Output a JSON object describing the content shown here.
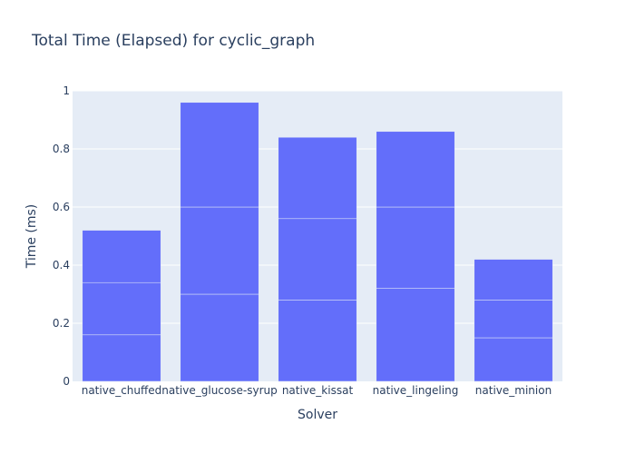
{
  "chart_data": {
    "type": "bar",
    "barmode": "stack",
    "title": "Total Time (Elapsed) for cyclic_graph",
    "xlabel": "Solver",
    "ylabel": "Time (ms)",
    "ylim": [
      0,
      1
    ],
    "yticks": [
      0,
      0.2,
      0.4,
      0.6,
      0.8,
      1
    ],
    "ytick_labels": [
      "0",
      "0.2",
      "0.4",
      "0.6",
      "0.8",
      "1"
    ],
    "grid": true,
    "categories": [
      "native_chuffed",
      "native_glucose-syrup",
      "native_kissat",
      "native_lingeling",
      "native_minion"
    ],
    "segments": [
      [
        0.16,
        0.18,
        0.18
      ],
      [
        0.3,
        0.3,
        0.36
      ],
      [
        0.28,
        0.28,
        0.28
      ],
      [
        0.32,
        0.28,
        0.26
      ],
      [
        0.15,
        0.13,
        0.14
      ]
    ],
    "totals": [
      0.52,
      0.96,
      0.84,
      0.86,
      0.42
    ],
    "colors": {
      "bar": "#636efa",
      "plot_bg": "#e5ecf6",
      "grid": "#ffffff",
      "text": "#2a3f5f"
    }
  }
}
